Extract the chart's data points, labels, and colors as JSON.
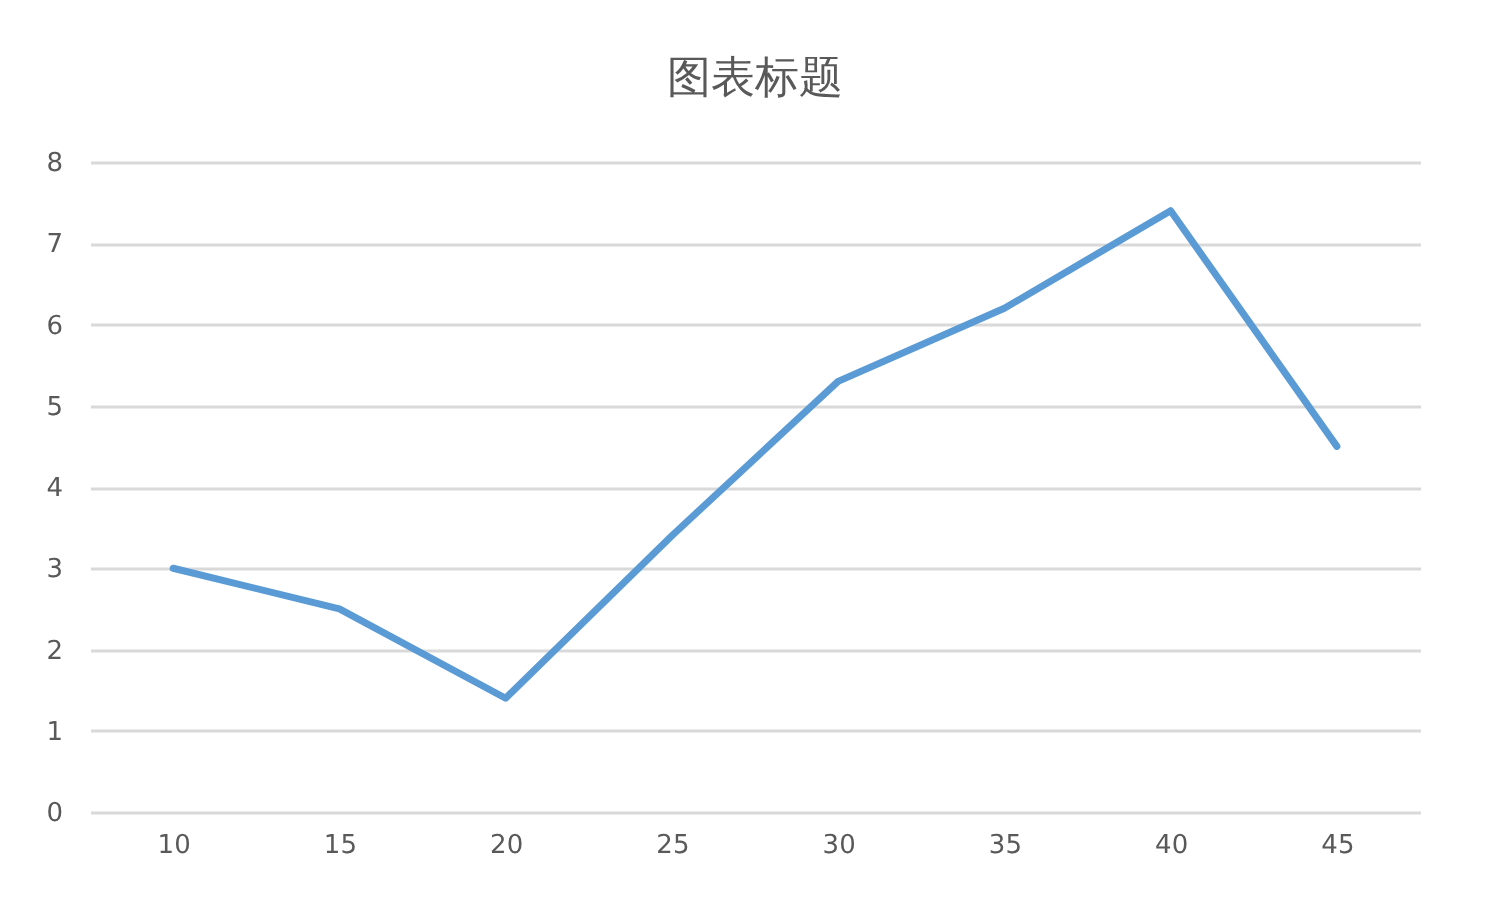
{
  "chart_data": {
    "type": "line",
    "title": "图表标题",
    "categories": [
      "10",
      "15",
      "20",
      "25",
      "30",
      "35",
      "40",
      "45"
    ],
    "series": [
      {
        "color": "#5b9bd5",
        "values": [
          3,
          2.5,
          1.4,
          3.4,
          5.3,
          6.2,
          7.4,
          4.5
        ]
      }
    ],
    "ylim": [
      0,
      8
    ],
    "yticks": [
      0,
      1,
      2,
      3,
      4,
      5,
      6,
      7,
      8
    ],
    "grid": "y",
    "legend": false,
    "marker": "none",
    "line_style": "solid"
  }
}
